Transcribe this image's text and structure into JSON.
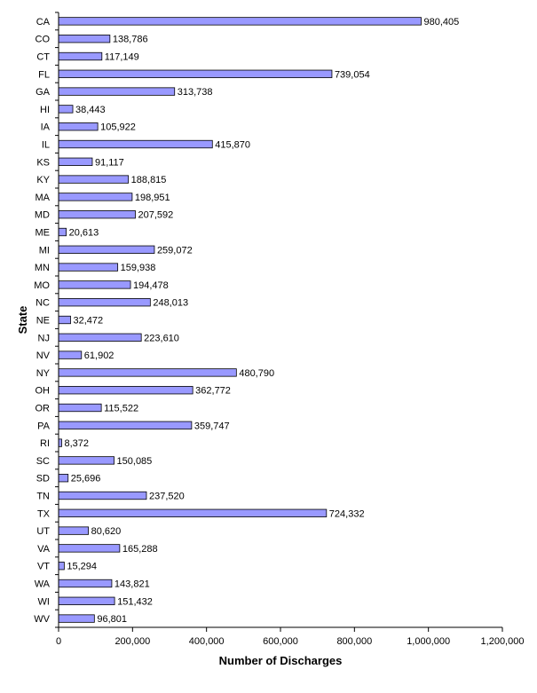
{
  "chart_data": {
    "type": "bar",
    "orientation": "horizontal",
    "title": "",
    "xlabel": "Number of Discharges",
    "ylabel": "State",
    "xlim": [
      0,
      1200000
    ],
    "xticks": [
      0,
      200000,
      400000,
      600000,
      800000,
      1000000,
      1200000
    ],
    "xtick_labels": [
      "0",
      "200,000",
      "400,000",
      "600,000",
      "800,000",
      "1,000,000",
      "1,200,000"
    ],
    "grid": false,
    "legend": "none",
    "bar_color": "#9999ff",
    "bar_edge_color": "#000000",
    "categories": [
      "CA",
      "CO",
      "CT",
      "FL",
      "GA",
      "HI",
      "IA",
      "IL",
      "KS",
      "KY",
      "MA",
      "MD",
      "ME",
      "MI",
      "MN",
      "MO",
      "NC",
      "NE",
      "NJ",
      "NV",
      "NY",
      "OH",
      "OR",
      "PA",
      "RI",
      "SC",
      "SD",
      "TN",
      "TX",
      "UT",
      "VA",
      "VT",
      "WA",
      "WI",
      "WV"
    ],
    "values": [
      980405,
      138786,
      117149,
      739054,
      313738,
      38443,
      105922,
      415870,
      91117,
      188815,
      198951,
      207592,
      20613,
      259072,
      159938,
      194478,
      248013,
      32472,
      223610,
      61902,
      480790,
      362772,
      115522,
      359747,
      8372,
      150085,
      25696,
      237520,
      724332,
      80620,
      165288,
      15294,
      143821,
      151432,
      96801
    ],
    "value_labels": [
      "980,405",
      "138,786",
      "117,149",
      "739,054",
      "313,738",
      "38,443",
      "105,922",
      "415,870",
      "91,117",
      "188,815",
      "198,951",
      "207,592",
      "20,613",
      "259,072",
      "159,938",
      "194,478",
      "248,013",
      "32,472",
      "223,610",
      "61,902",
      "480,790",
      "362,772",
      "115,522",
      "359,747",
      "8,372",
      "150,085",
      "25,696",
      "237,520",
      "724,332",
      "80,620",
      "165,288",
      "15,294",
      "143,821",
      "151,432",
      "96,801"
    ]
  }
}
